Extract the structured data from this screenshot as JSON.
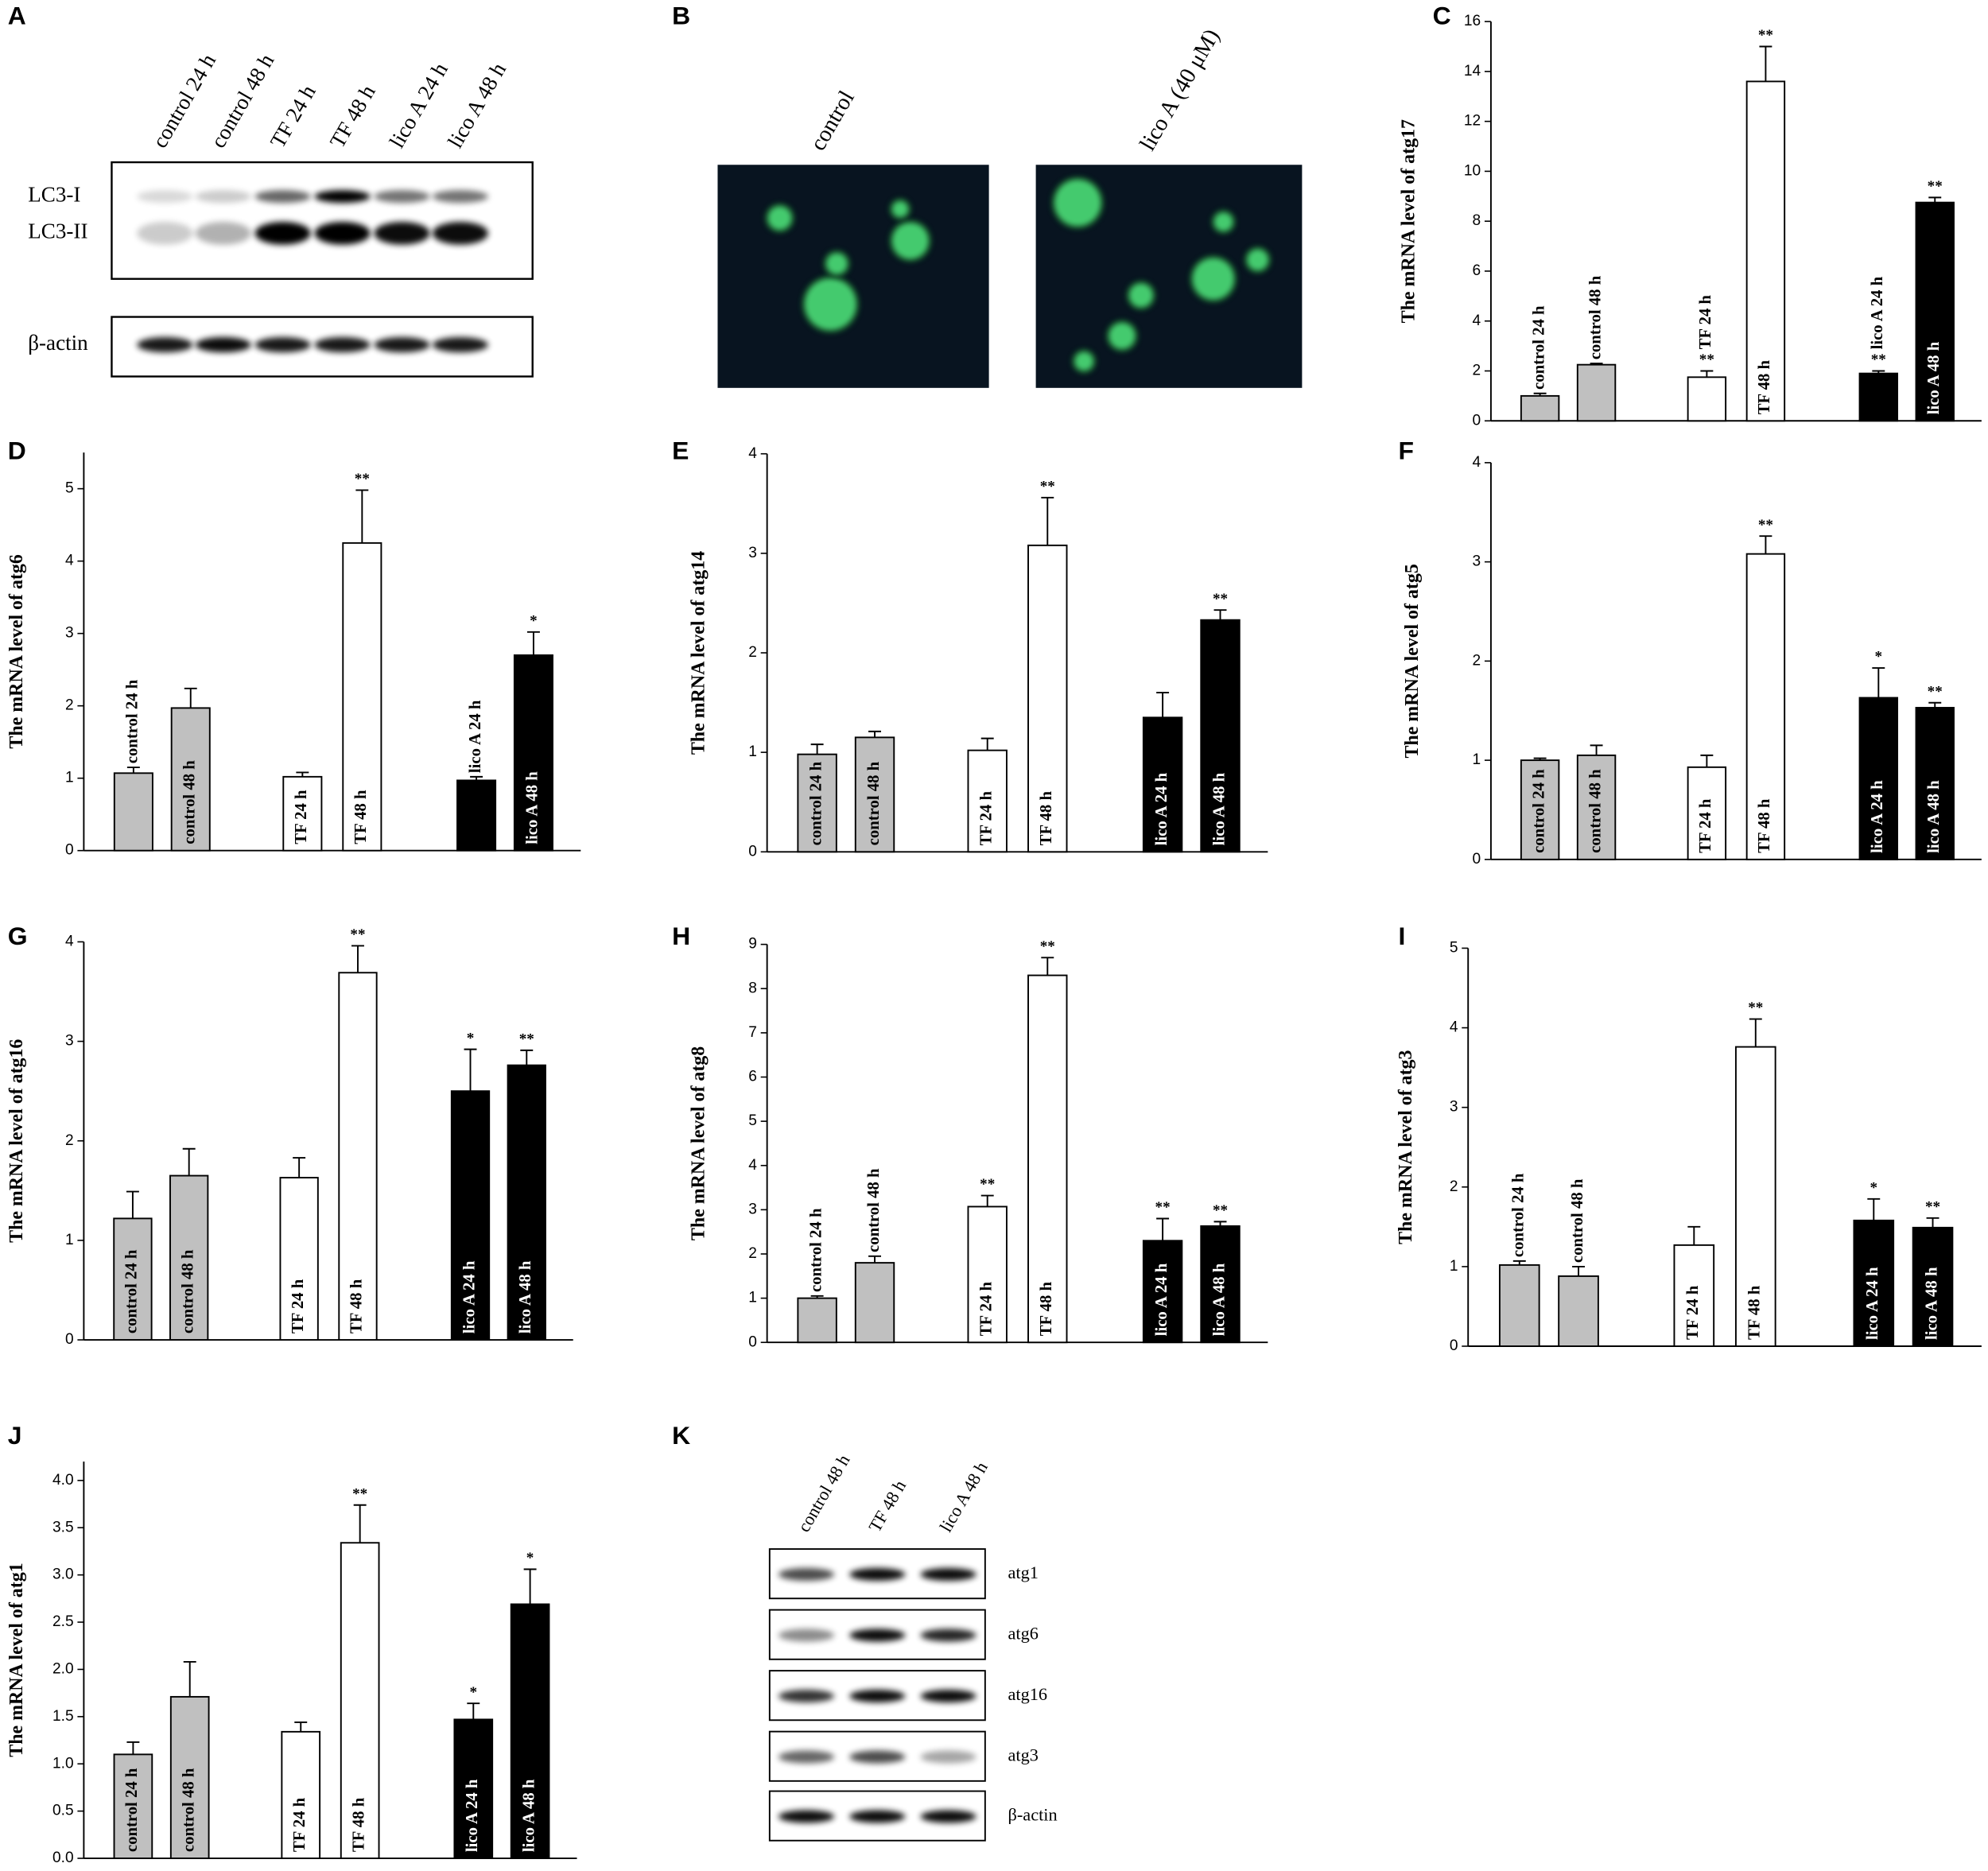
{
  "blot_a": {
    "panel": "A",
    "lanes": [
      "control 24 h",
      "control 48 h",
      "TF 24 h",
      "TF 48 h",
      "lico A  24 h",
      "lico A  48 h"
    ],
    "rows": [
      "LC3-I",
      "LC3-II",
      "β-actin"
    ]
  },
  "micrograph_b": {
    "panel": "B",
    "labels": [
      "control",
      "lico A (40 μM)"
    ]
  },
  "blot_k": {
    "panel": "K",
    "lanes": [
      "control 48 h",
      "TF 48 h",
      "lico A 48 h"
    ],
    "rows": [
      "atg1",
      "atg6",
      "atg16",
      "atg3",
      "β-actin"
    ]
  },
  "chart_data": [
    {
      "type": "bar",
      "panel": "C",
      "ylabel": "The mRNA level of atg17",
      "categories": [
        "control 24 h",
        "control 48 h",
        "TF 24 h",
        "TF 48 h",
        "lico A 24 h",
        "lico A 48 h"
      ],
      "values": [
        1.0,
        2.25,
        1.75,
        13.6,
        1.9,
        8.75
      ],
      "errors": [
        0.1,
        0.05,
        0.25,
        1.4,
        0.1,
        0.2
      ],
      "significance": [
        null,
        null,
        "**",
        "**",
        "**",
        "**"
      ],
      "colors": [
        "#c0c0c0",
        "#c0c0c0",
        "#ffffff",
        "#ffffff",
        "#000000",
        "#000000"
      ],
      "ylim": [
        0,
        16
      ],
      "yticks": [
        0,
        2,
        4,
        6,
        8,
        10,
        12,
        14,
        16
      ]
    },
    {
      "type": "bar",
      "panel": "D",
      "ylabel": "The mRNA level of atg6",
      "categories": [
        "control 24 h",
        "control 48 h",
        "TF 24 h",
        "TF 48 h",
        "lico A 24 h",
        "lico A 48 h"
      ],
      "values": [
        1.07,
        1.97,
        1.02,
        4.25,
        0.97,
        2.7
      ],
      "errors": [
        0.08,
        0.27,
        0.06,
        0.73,
        0.05,
        0.32
      ],
      "significance": [
        null,
        null,
        null,
        "**",
        null,
        "*"
      ],
      "colors": [
        "#c0c0c0",
        "#c0c0c0",
        "#ffffff",
        "#ffffff",
        "#000000",
        "#000000"
      ],
      "ylim": [
        0,
        5.5
      ],
      "yticks": [
        0,
        1,
        2,
        3,
        4,
        5
      ]
    },
    {
      "type": "bar",
      "panel": "E",
      "ylabel": "The mRNA level of atg14",
      "categories": [
        "control 24 h",
        "control 48 h",
        "TF 24 h",
        "TF 48 h",
        "lico A 24 h",
        "lico A 48 h"
      ],
      "values": [
        0.98,
        1.15,
        1.02,
        3.08,
        1.35,
        2.33
      ],
      "errors": [
        0.1,
        0.06,
        0.12,
        0.48,
        0.25,
        0.1
      ],
      "significance": [
        null,
        null,
        null,
        "**",
        null,
        "**"
      ],
      "colors": [
        "#c0c0c0",
        "#c0c0c0",
        "#ffffff",
        "#ffffff",
        "#000000",
        "#000000"
      ],
      "ylim": [
        0,
        4
      ],
      "yticks": [
        0,
        1,
        2,
        3,
        4
      ]
    },
    {
      "type": "bar",
      "panel": "F",
      "ylabel": "The mRNA level of atg5",
      "categories": [
        "control 24 h",
        "control 48 h",
        "TF 24 h",
        "TF 48 h",
        "lico A 24 h",
        "lico A 48 h"
      ],
      "values": [
        1.0,
        1.05,
        0.93,
        3.08,
        1.63,
        1.53
      ],
      "errors": [
        0.02,
        0.1,
        0.12,
        0.18,
        0.3,
        0.05
      ],
      "significance": [
        null,
        null,
        null,
        "**",
        "*",
        "**"
      ],
      "colors": [
        "#c0c0c0",
        "#c0c0c0",
        "#ffffff",
        "#ffffff",
        "#000000",
        "#000000"
      ],
      "ylim": [
        0,
        4
      ],
      "yticks": [
        0,
        1,
        2,
        3,
        4
      ]
    },
    {
      "type": "bar",
      "panel": "G",
      "ylabel": "The mRNA level of atg16",
      "categories": [
        "control 24 h",
        "control 48 h",
        "TF 24 h",
        "TF 48 h",
        "lico A 24 h",
        "lico A 48 h"
      ],
      "values": [
        1.22,
        1.65,
        1.63,
        3.69,
        2.5,
        2.76
      ],
      "errors": [
        0.27,
        0.27,
        0.2,
        0.27,
        0.42,
        0.15
      ],
      "significance": [
        null,
        null,
        null,
        "**",
        "*",
        "**"
      ],
      "colors": [
        "#c0c0c0",
        "#c0c0c0",
        "#ffffff",
        "#ffffff",
        "#000000",
        "#000000"
      ],
      "ylim": [
        0,
        4
      ],
      "yticks": [
        0,
        1,
        2,
        3,
        4
      ]
    },
    {
      "type": "bar",
      "panel": "H",
      "ylabel": "The mRNA level of atg8",
      "categories": [
        "control 24 h",
        "control 48 h",
        "TF 24 h",
        "TF 48 h",
        "lico A 24 h",
        "lico A 48 h"
      ],
      "values": [
        1.0,
        1.8,
        3.07,
        8.3,
        2.3,
        2.63
      ],
      "errors": [
        0.05,
        0.15,
        0.25,
        0.4,
        0.5,
        0.1
      ],
      "significance": [
        null,
        null,
        "**",
        "**",
        "**",
        "**"
      ],
      "colors": [
        "#c0c0c0",
        "#c0c0c0",
        "#ffffff",
        "#ffffff",
        "#000000",
        "#000000"
      ],
      "ylim": [
        0,
        9
      ],
      "yticks": [
        0,
        1,
        2,
        3,
        4,
        5,
        6,
        7,
        8,
        9
      ]
    },
    {
      "type": "bar",
      "panel": "I",
      "ylabel": "The mRNA level of atg3",
      "categories": [
        "control 24 h",
        "control 48 h",
        "TF 24 h",
        "TF 48 h",
        "lico A 24 h",
        "lico A 48 h"
      ],
      "values": [
        1.02,
        0.88,
        1.27,
        3.76,
        1.58,
        1.49
      ],
      "errors": [
        0.05,
        0.12,
        0.23,
        0.35,
        0.27,
        0.12
      ],
      "significance": [
        null,
        null,
        null,
        "**",
        "*",
        "**"
      ],
      "colors": [
        "#c0c0c0",
        "#c0c0c0",
        "#ffffff",
        "#ffffff",
        "#000000",
        "#000000"
      ],
      "ylim": [
        0,
        5
      ],
      "yticks": [
        0,
        1,
        2,
        3,
        4,
        5
      ]
    },
    {
      "type": "bar",
      "panel": "J",
      "ylabel": "The mRNA level of atg1",
      "categories": [
        "control 24 h",
        "control 48 h",
        "TF 24 h",
        "TF 48 h",
        "lico A 24 h",
        "lico A 48 h"
      ],
      "values": [
        1.1,
        1.71,
        1.34,
        3.34,
        1.47,
        2.69
      ],
      "errors": [
        0.13,
        0.37,
        0.1,
        0.4,
        0.17,
        0.37
      ],
      "significance": [
        null,
        null,
        null,
        "**",
        "*",
        "*"
      ],
      "colors": [
        "#c0c0c0",
        "#c0c0c0",
        "#ffffff",
        "#ffffff",
        "#000000",
        "#000000"
      ],
      "ylim": [
        0,
        4.2
      ],
      "yticks": [
        {
          "value": 0,
          "label": "0.0"
        },
        0.5,
        {
          "value": 1,
          "label": "1.0"
        },
        1.5,
        {
          "value": 2,
          "label": "2.0"
        },
        2.5,
        {
          "value": 3,
          "label": "3.0"
        },
        3.5,
        {
          "value": 4,
          "label": "4.0"
        }
      ]
    }
  ]
}
